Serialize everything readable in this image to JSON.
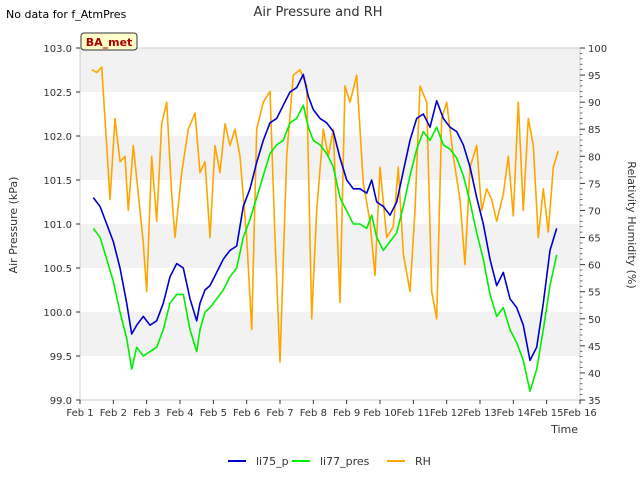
{
  "figure": {
    "nodata_text": "No data for f_AtmPres",
    "badge_text": "BA_met"
  },
  "chart_data": {
    "type": "line",
    "title": "Air Pressure and RH",
    "xlabel": "Time",
    "ylabel": "Air Pressure (kPa)",
    "ylabel_right": "Relativity Humidity (%)",
    "x_ticks": [
      "Feb 1",
      "Feb 2",
      "Feb 3",
      "Feb 4",
      "Feb 5",
      "Feb 6",
      "Feb 7",
      "Feb 8",
      "Feb 9",
      "Feb 10",
      "Feb 11",
      "Feb 12",
      "Feb 13",
      "Feb 14",
      "Feb 15",
      "Feb 16"
    ],
    "xlim": [
      1,
      16
    ],
    "ylim": [
      99.0,
      103.0
    ],
    "y_ticks": [
      "99.0",
      "99.5",
      "100.0",
      "100.5",
      "101.0",
      "101.5",
      "102.0",
      "102.5",
      "103.0"
    ],
    "ylim_right": [
      35,
      100
    ],
    "y_ticks_right": [
      "35",
      "40",
      "45",
      "50",
      "55",
      "60",
      "65",
      "70",
      "75",
      "80",
      "85",
      "90",
      "95",
      "100"
    ],
    "grid": "horizontal bands",
    "legend_position": "bottom",
    "series": [
      {
        "name": "li75_p",
        "axis": "left",
        "color": "#0000cc",
        "x": [
          1.4,
          1.6,
          1.8,
          2.0,
          2.2,
          2.4,
          2.55,
          2.7,
          2.9,
          3.1,
          3.3,
          3.5,
          3.7,
          3.9,
          4.1,
          4.3,
          4.5,
          4.6,
          4.75,
          4.9,
          5.1,
          5.3,
          5.5,
          5.7,
          5.9,
          6.1,
          6.3,
          6.5,
          6.7,
          6.9,
          7.1,
          7.3,
          7.5,
          7.7,
          7.85,
          8.0,
          8.2,
          8.4,
          8.6,
          8.8,
          9.0,
          9.2,
          9.4,
          9.6,
          9.75,
          9.9,
          10.1,
          10.3,
          10.5,
          10.7,
          10.9,
          11.1,
          11.3,
          11.5,
          11.7,
          11.9,
          12.1,
          12.3,
          12.5,
          12.7,
          12.9,
          13.1,
          13.3,
          13.5,
          13.7,
          13.9,
          14.1,
          14.3,
          14.5,
          14.7,
          14.9,
          15.1,
          15.3
        ],
        "y": [
          101.3,
          101.2,
          101.0,
          100.8,
          100.5,
          100.1,
          99.75,
          99.85,
          99.95,
          99.85,
          99.9,
          100.1,
          100.4,
          100.55,
          100.5,
          100.15,
          99.9,
          100.1,
          100.25,
          100.3,
          100.45,
          100.6,
          100.7,
          100.75,
          101.2,
          101.4,
          101.7,
          101.95,
          102.15,
          102.2,
          102.35,
          102.5,
          102.55,
          102.7,
          102.45,
          102.3,
          102.2,
          102.15,
          102.05,
          101.75,
          101.5,
          101.4,
          101.4,
          101.35,
          101.5,
          101.25,
          101.2,
          101.1,
          101.25,
          101.6,
          101.95,
          102.2,
          102.25,
          102.1,
          102.4,
          102.2,
          102.1,
          102.05,
          101.9,
          101.65,
          101.3,
          101.0,
          100.6,
          100.3,
          100.45,
          100.15,
          100.05,
          99.85,
          99.45,
          99.6,
          100.1,
          100.7,
          100.95
        ]
      },
      {
        "name": "li77_pres",
        "axis": "left",
        "color": "#00ee00",
        "x": [
          1.4,
          1.6,
          1.8,
          2.0,
          2.2,
          2.4,
          2.55,
          2.7,
          2.9,
          3.1,
          3.3,
          3.5,
          3.7,
          3.9,
          4.1,
          4.3,
          4.5,
          4.6,
          4.75,
          4.9,
          5.1,
          5.3,
          5.5,
          5.7,
          5.9,
          6.1,
          6.3,
          6.5,
          6.7,
          6.9,
          7.1,
          7.3,
          7.5,
          7.7,
          7.85,
          8.0,
          8.2,
          8.4,
          8.6,
          8.8,
          9.0,
          9.2,
          9.4,
          9.6,
          9.75,
          9.9,
          10.1,
          10.3,
          10.5,
          10.7,
          10.9,
          11.1,
          11.3,
          11.5,
          11.7,
          11.9,
          12.1,
          12.3,
          12.5,
          12.7,
          12.9,
          13.1,
          13.3,
          13.5,
          13.7,
          13.9,
          14.1,
          14.3,
          14.5,
          14.7,
          14.9,
          15.1,
          15.3
        ],
        "y": [
          100.95,
          100.85,
          100.6,
          100.35,
          100.0,
          99.7,
          99.35,
          99.6,
          99.5,
          99.55,
          99.6,
          99.8,
          100.1,
          100.2,
          100.2,
          99.8,
          99.55,
          99.8,
          100.0,
          100.05,
          100.15,
          100.25,
          100.4,
          100.5,
          100.85,
          101.05,
          101.3,
          101.55,
          101.8,
          101.9,
          101.95,
          102.15,
          102.2,
          102.35,
          102.1,
          101.95,
          101.9,
          101.8,
          101.65,
          101.3,
          101.15,
          101.0,
          101.0,
          100.95,
          101.1,
          100.85,
          100.7,
          100.8,
          100.9,
          101.2,
          101.55,
          101.85,
          102.05,
          101.95,
          102.1,
          101.9,
          101.85,
          101.75,
          101.55,
          101.25,
          100.9,
          100.6,
          100.2,
          99.95,
          100.05,
          99.8,
          99.65,
          99.45,
          99.1,
          99.35,
          99.8,
          100.3,
          100.65
        ]
      },
      {
        "name": "RH",
        "axis": "right",
        "color": "#ffa500",
        "x": [
          1.35,
          1.5,
          1.65,
          1.8,
          1.9,
          2.05,
          2.2,
          2.35,
          2.45,
          2.6,
          2.75,
          2.9,
          3.0,
          3.15,
          3.3,
          3.45,
          3.6,
          3.75,
          3.85,
          4.05,
          4.25,
          4.45,
          4.6,
          4.75,
          4.9,
          5.05,
          5.2,
          5.35,
          5.5,
          5.65,
          5.8,
          6.0,
          6.15,
          6.3,
          6.5,
          6.7,
          6.85,
          7.0,
          7.2,
          7.4,
          7.6,
          7.8,
          7.95,
          8.1,
          8.3,
          8.45,
          8.6,
          8.8,
          8.95,
          9.1,
          9.3,
          9.5,
          9.7,
          9.85,
          10.0,
          10.2,
          10.4,
          10.55,
          10.7,
          10.9,
          11.05,
          11.2,
          11.4,
          11.55,
          11.7,
          11.85,
          12.0,
          12.2,
          12.4,
          12.55,
          12.7,
          12.9,
          13.05,
          13.2,
          13.35,
          13.5,
          13.7,
          13.85,
          14.0,
          14.15,
          14.3,
          14.45,
          14.6,
          14.75,
          14.9,
          15.05,
          15.2,
          15.35
        ],
        "y": [
          96,
          95.5,
          96.5,
          82,
          72,
          87,
          79,
          80,
          70,
          82,
          73,
          64,
          55,
          80,
          68,
          86,
          90,
          73,
          65,
          77,
          85,
          88,
          77,
          79,
          65,
          82,
          77,
          86,
          82,
          85,
          80,
          65,
          48,
          85,
          90,
          92,
          65,
          42,
          80,
          95,
          96,
          93,
          50,
          70,
          85,
          80,
          85,
          53,
          93,
          90,
          95,
          75,
          68,
          58,
          78,
          65,
          67,
          78,
          62,
          55,
          70,
          93,
          90,
          55,
          50,
          87,
          90,
          80,
          72,
          60,
          78,
          82,
          70,
          74,
          72,
          68,
          73,
          80,
          69,
          90,
          70,
          87,
          82,
          65,
          74,
          66,
          78,
          81
        ]
      }
    ]
  }
}
